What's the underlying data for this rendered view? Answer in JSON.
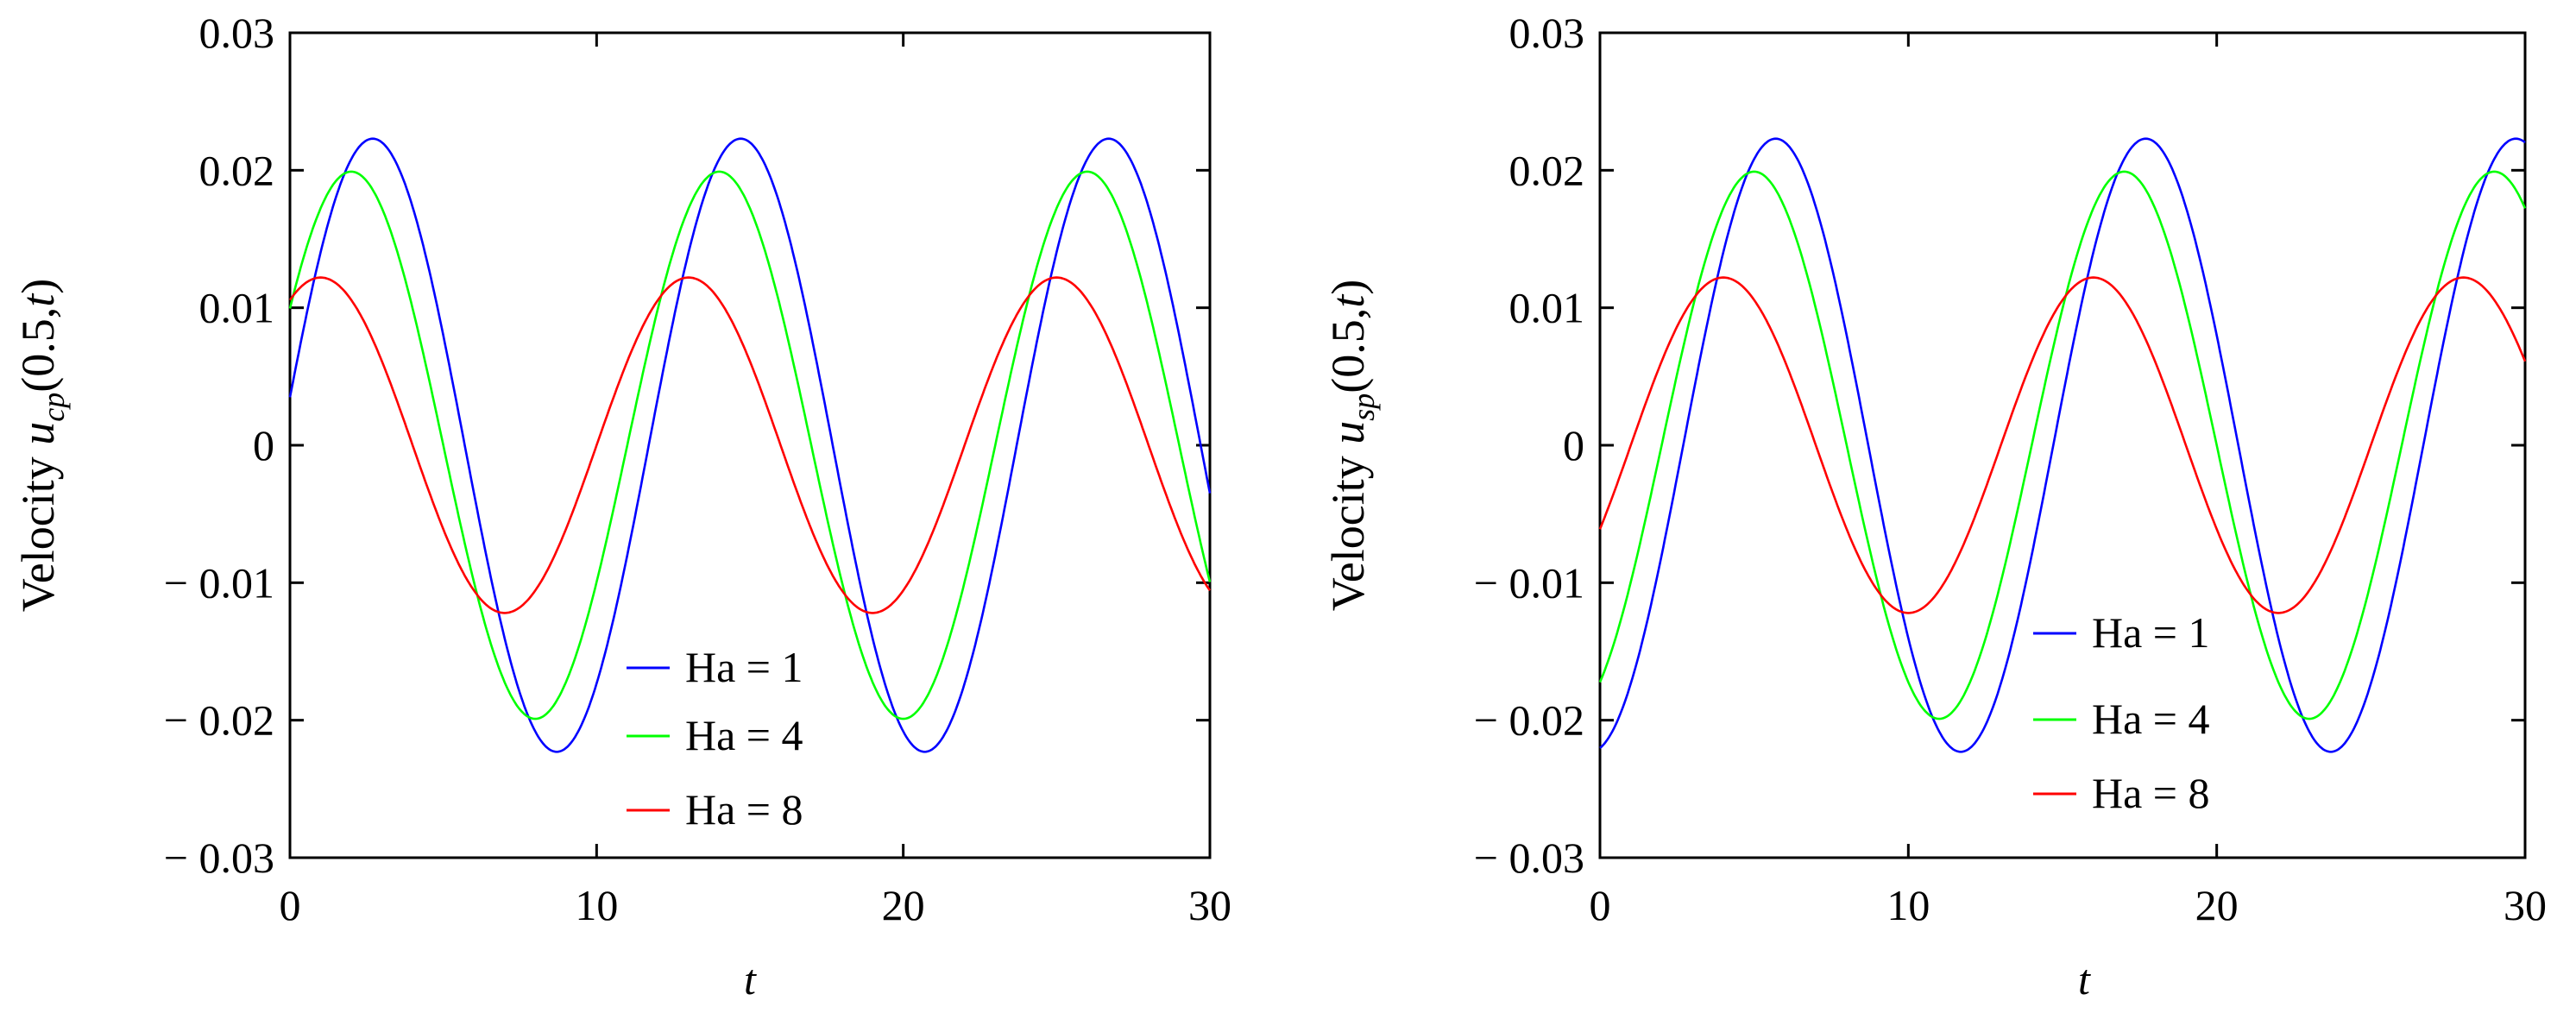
{
  "chart_data": [
    {
      "type": "line",
      "ylabel_prefix": "Velocity ",
      "ylabel_var": "u",
      "ylabel_sub": "cp",
      "ylabel_args": "(0.5,",
      "ylabel_arg_t": "t",
      "ylabel_close": ")",
      "xlabel": "t",
      "xlim": [
        0,
        30
      ],
      "ylim": [
        -0.03,
        0.03
      ],
      "xticks": [
        0,
        10,
        20,
        30
      ],
      "xtick_labels": [
        "0",
        "10",
        "20",
        "30"
      ],
      "yticks": [
        -0.03,
        -0.02,
        -0.01,
        0,
        0.01,
        0.02,
        0.03
      ],
      "ytick_labels": [
        "− 0.03",
        "− 0.02",
        "− 0.01",
        "0",
        "0.01",
        "0.02",
        "0.03"
      ],
      "legend_position": "bottom-center",
      "period": 12,
      "series": [
        {
          "name": "Ha = 1",
          "color": "#0000ff",
          "amplitude": 0.0223,
          "phase_shift": 2.7,
          "x": [
            0,
            2.7,
            5.7,
            8.7,
            11.7,
            14.7,
            17.7,
            20.7,
            23.7,
            26.7,
            29.7
          ],
          "y": [
            0.0029,
            0.0223,
            0.0,
            -0.0223,
            0.0,
            0.0223,
            0.0,
            -0.0223,
            0.0,
            0.0223,
            0.0
          ]
        },
        {
          "name": "Ha = 4",
          "color": "#00ff00",
          "amplitude": 0.0199,
          "phase_shift": 2.0,
          "x": [
            0,
            2.0,
            5.0,
            8.0,
            11.0,
            14.0,
            17.0,
            20.0,
            23.0,
            26.0,
            29.0
          ],
          "y": [
            0.0099,
            0.0199,
            0.0,
            -0.0199,
            0.0,
            0.0199,
            0.0,
            -0.0199,
            0.0,
            0.0199,
            0.0
          ]
        },
        {
          "name": "Ha = 8",
          "color": "#ff0000",
          "amplitude": 0.0122,
          "phase_shift": 1.0,
          "x": [
            0,
            1.0,
            4.0,
            7.0,
            10.0,
            13.0,
            16.0,
            19.0,
            22.0,
            25.0,
            28.0
          ],
          "y": [
            0.0106,
            0.0122,
            0.0,
            -0.0122,
            0.0,
            0.0122,
            0.0,
            -0.0122,
            0.0,
            0.0122,
            0.0
          ]
        }
      ]
    },
    {
      "type": "line",
      "ylabel_prefix": "Velocity ",
      "ylabel_var": "u",
      "ylabel_sub": "sp",
      "ylabel_args": "(0.5,",
      "ylabel_arg_t": "t",
      "ylabel_close": ")",
      "xlabel": "t",
      "xlim": [
        0,
        30
      ],
      "ylim": [
        -0.03,
        0.03
      ],
      "xticks": [
        0,
        10,
        20,
        30
      ],
      "xtick_labels": [
        "0",
        "10",
        "20",
        "30"
      ],
      "yticks": [
        -0.03,
        -0.02,
        -0.01,
        0,
        0.01,
        0.02,
        0.03
      ],
      "ytick_labels": [
        "− 0.03",
        "− 0.02",
        "− 0.01",
        "0",
        "0.01",
        "0.02",
        "0.03"
      ],
      "legend_position": "bottom-center",
      "period": 12,
      "series": [
        {
          "name": "Ha = 1",
          "color": "#0000ff",
          "amplitude": 0.0223,
          "phase_shift": 5.7,
          "x": [
            0,
            2.7,
            5.7,
            8.7,
            11.7,
            14.7,
            17.7,
            20.7,
            23.7,
            26.7,
            29.7
          ],
          "y": [
            -0.0222,
            0.0,
            0.0223,
            0.0,
            -0.0223,
            0.0,
            0.0223,
            0.0,
            -0.0223,
            0.0,
            0.0223
          ]
        },
        {
          "name": "Ha = 4",
          "color": "#00ff00",
          "amplitude": 0.0199,
          "phase_shift": 5.0,
          "x": [
            0,
            2.0,
            5.0,
            8.0,
            11.0,
            14.0,
            17.0,
            20.0,
            23.0,
            26.0,
            29.0
          ],
          "y": [
            -0.0172,
            0.0,
            0.0199,
            0.0,
            -0.0199,
            0.0,
            0.0199,
            0.0,
            -0.0199,
            0.0,
            0.0199
          ]
        },
        {
          "name": "Ha = 8",
          "color": "#ff0000",
          "amplitude": 0.0122,
          "phase_shift": 4.0,
          "x": [
            0,
            1.0,
            4.0,
            7.0,
            10.0,
            13.0,
            16.0,
            19.0,
            22.0,
            25.0,
            28.0
          ],
          "y": [
            -0.0061,
            0.0,
            0.0122,
            0.0,
            -0.0122,
            0.0,
            0.0122,
            0.0,
            -0.0122,
            0.0,
            0.0122
          ]
        }
      ]
    }
  ]
}
